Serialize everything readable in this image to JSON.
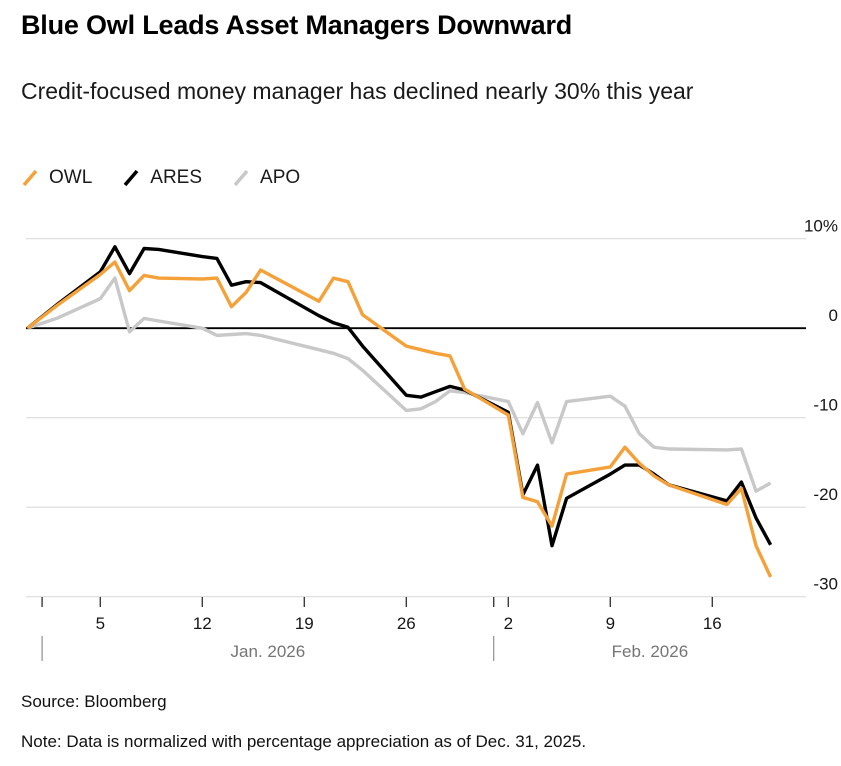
{
  "chart_data": {
    "type": "line",
    "title": "Blue Owl Leads Asset Managers Downward",
    "subtitle": "Credit-focused money manager has declined nearly 30% this year",
    "source": "Source: Bloomberg",
    "note": "Note: Data is normalized with percentage appreciation as of Dec. 31, 2025.",
    "unit": "%",
    "ylim": [
      -30,
      10
    ],
    "grid": "horizontal",
    "legend_position": "top-left",
    "x_dates": [
      "Dec. 31",
      "Jan. 2",
      "Jan. 5",
      "Jan. 6",
      "Jan. 7",
      "Jan. 8",
      "Jan. 9",
      "Jan. 12",
      "Jan. 13",
      "Jan. 14",
      "Jan. 15",
      "Jan. 16",
      "Jan. 20",
      "Jan. 21",
      "Jan. 22",
      "Jan. 23",
      "Jan. 26",
      "Jan. 27",
      "Jan. 28",
      "Jan. 29",
      "Jan. 30",
      "Feb. 2",
      "Feb. 3",
      "Feb. 4",
      "Feb. 5",
      "Feb. 6",
      "Feb. 9",
      "Feb. 10",
      "Feb. 11",
      "Feb. 12",
      "Feb. 13",
      "Feb. 17",
      "Feb. 18",
      "Feb. 19",
      "Feb. 20"
    ],
    "day_offsets": [
      0,
      2,
      5,
      6,
      7,
      8,
      9,
      12,
      13,
      14,
      15,
      16,
      20,
      21,
      22,
      23,
      26,
      27,
      28,
      29,
      30,
      33,
      34,
      35,
      36,
      37,
      40,
      41,
      42,
      43,
      44,
      48,
      49,
      50,
      51
    ],
    "series": [
      {
        "name": "OWL",
        "color": "#F5A13A",
        "values": [
          0,
          2.5,
          6.0,
          7.4,
          4.2,
          5.9,
          5.6,
          5.5,
          5.6,
          2.4,
          4.0,
          6.5,
          3.0,
          5.6,
          5.2,
          1.5,
          -2.0,
          -2.4,
          -2.8,
          -3.1,
          -6.8,
          -9.7,
          -18.9,
          -19.4,
          -22.1,
          -16.3,
          -15.5,
          -13.3,
          -15.1,
          -16.5,
          -17.5,
          -19.7,
          -17.9,
          -24.3,
          -27.8
        ]
      },
      {
        "name": "ARES",
        "color": "#000000",
        "values": [
          0,
          2.6,
          6.3,
          9.1,
          6.1,
          8.9,
          8.8,
          8.0,
          7.8,
          4.8,
          5.2,
          5.1,
          1.4,
          0.6,
          0.1,
          -2.0,
          -7.5,
          -7.7,
          -7.1,
          -6.5,
          -6.9,
          -9.4,
          -18.6,
          -15.3,
          -24.3,
          -19.0,
          -16.3,
          -15.3,
          -15.3,
          -16.3,
          -17.5,
          -19.3,
          -17.2,
          -21.2,
          -24.2
        ]
      },
      {
        "name": "APO",
        "color": "#C8C8C9",
        "values": [
          0,
          1.1,
          3.3,
          5.6,
          -0.4,
          1.1,
          0.8,
          0.0,
          -0.8,
          -0.7,
          -0.6,
          -0.8,
          -2.4,
          -2.8,
          -3.4,
          -4.7,
          -9.2,
          -9.0,
          -8.2,
          -7.0,
          -7.2,
          -8.2,
          -11.8,
          -8.3,
          -12.8,
          -8.2,
          -7.6,
          -8.7,
          -11.8,
          -13.3,
          -13.5,
          -13.6,
          -13.5,
          -18.2,
          -17.3
        ]
      }
    ],
    "yticks": [
      {
        "v": 10,
        "label": "10%"
      },
      {
        "v": 0,
        "label": "0"
      },
      {
        "v": -10,
        "label": "-10"
      },
      {
        "v": -20,
        "label": "-20"
      },
      {
        "v": -30,
        "label": "-30"
      }
    ],
    "xticks": [
      {
        "offset": 1,
        "label": ""
      },
      {
        "offset": 5,
        "label": "5"
      },
      {
        "offset": 12,
        "label": "12"
      },
      {
        "offset": 19,
        "label": "19"
      },
      {
        "offset": 26,
        "label": "26"
      },
      {
        "offset": 32,
        "label": ""
      },
      {
        "offset": 33,
        "label": "2"
      },
      {
        "offset": 40,
        "label": "9"
      },
      {
        "offset": 47,
        "label": "16"
      }
    ],
    "months": [
      {
        "label": "Jan. 2026",
        "divider_offset": 1
      },
      {
        "label": "Feb. 2026",
        "divider_offset": 32
      }
    ]
  }
}
